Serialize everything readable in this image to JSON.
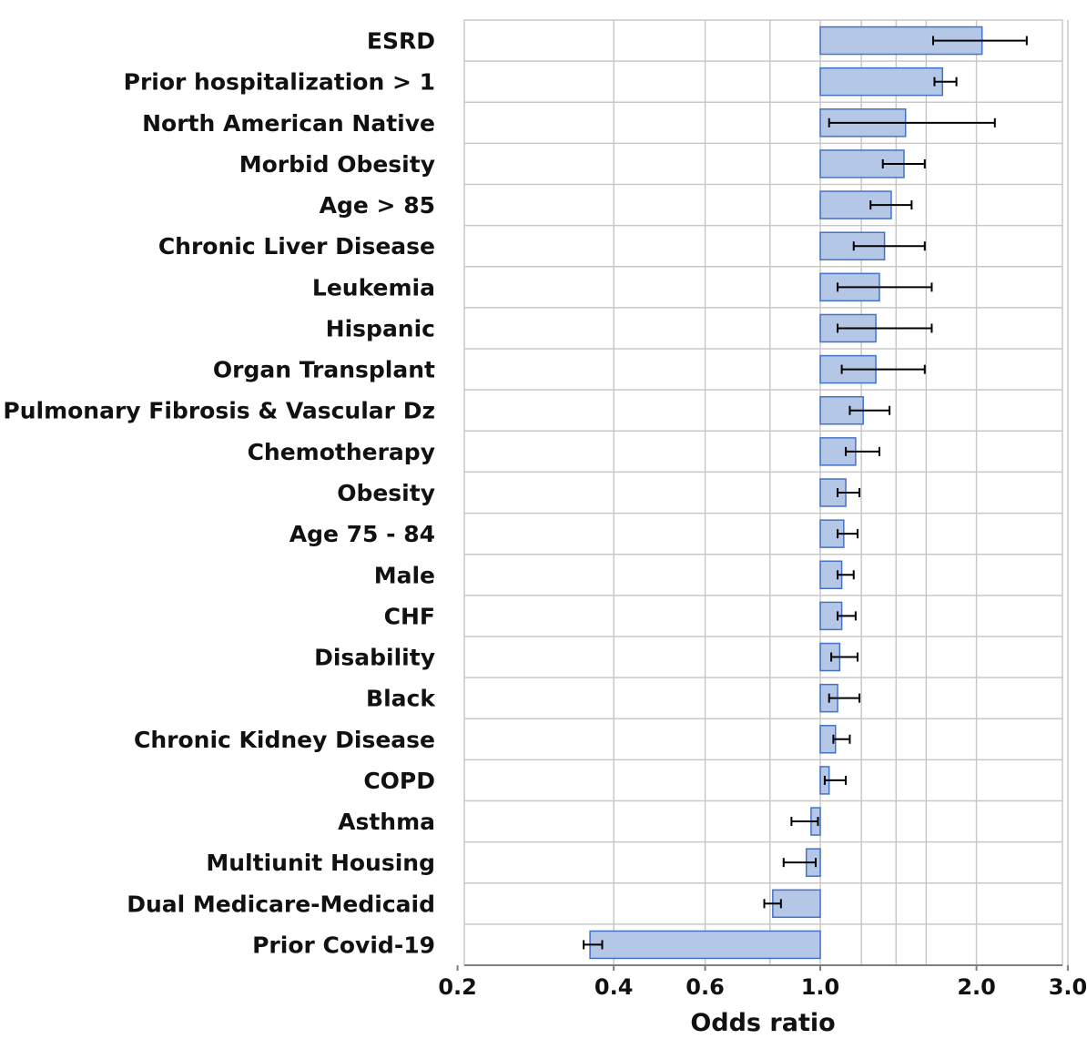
{
  "chart_data": {
    "type": "bar",
    "orientation": "horizontal",
    "xscale": "log",
    "baseline": 1.0,
    "xlabel": "Odds ratio",
    "xlim": [
      0.2,
      3.0
    ],
    "xticks": [
      0.2,
      0.4,
      0.6,
      1.0,
      2.0,
      3.0
    ],
    "xtick_labels": [
      "0.2",
      "0.4",
      "0.6",
      "1.0",
      "2.0",
      "3.0"
    ],
    "xgrid": [
      0.4,
      0.6,
      0.8,
      1.0,
      1.2,
      1.4,
      1.6,
      2.0,
      3.0
    ],
    "grid": true,
    "bar_color": "#b4c7e7",
    "bar_edge_color": "#4472c4",
    "grid_color": "#c8c8c8",
    "categories": [
      "ESRD",
      "Prior hospitalization > 1",
      "North American Native",
      "Morbid Obesity",
      "Age > 85",
      "Chronic Liver Disease",
      "Leukemia",
      "Hispanic",
      "Organ Transplant",
      "Pulmonary Fibrosis & Vascular Dz",
      "Chemotherapy",
      "Obesity",
      "Age 75 - 84",
      "Male",
      "CHF",
      "Disability",
      "Black",
      "Chronic Kidney Disease",
      "COPD",
      "Asthma",
      "Multiunit Housing",
      "Dual Medicare-Medicaid",
      "Prior Covid-19"
    ],
    "values": [
      2.05,
      1.72,
      1.46,
      1.45,
      1.37,
      1.33,
      1.3,
      1.28,
      1.28,
      1.21,
      1.17,
      1.12,
      1.11,
      1.1,
      1.1,
      1.09,
      1.08,
      1.07,
      1.04,
      0.96,
      0.94,
      0.81,
      0.36
    ],
    "ci_lower": [
      1.65,
      1.66,
      1.04,
      1.32,
      1.25,
      1.16,
      1.08,
      1.08,
      1.1,
      1.14,
      1.12,
      1.08,
      1.08,
      1.08,
      1.08,
      1.05,
      1.04,
      1.06,
      1.02,
      0.88,
      0.85,
      0.78,
      0.35
    ],
    "ci_upper": [
      2.5,
      1.83,
      2.17,
      1.59,
      1.5,
      1.59,
      1.64,
      1.64,
      1.59,
      1.36,
      1.3,
      1.19,
      1.18,
      1.16,
      1.17,
      1.18,
      1.19,
      1.14,
      1.12,
      0.99,
      0.98,
      0.84,
      0.38
    ]
  }
}
